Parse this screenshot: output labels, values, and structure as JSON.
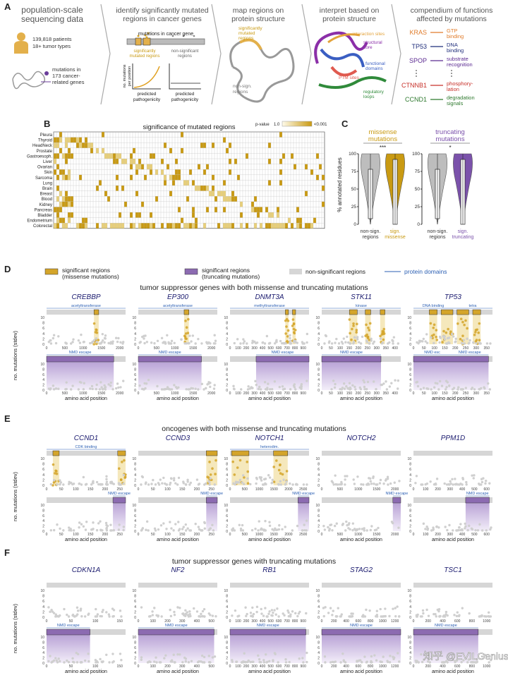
{
  "panel_a": {
    "label": "A",
    "step1": {
      "title": [
        "population-scale",
        "sequencing data"
      ],
      "patients": "139,818 patients",
      "tumor_types": "18+ tumor types",
      "mutations": [
        "mutations in",
        "173 cancer-",
        "related genes"
      ]
    },
    "step2": {
      "title": [
        "identify significantly mutated",
        "regions in cancer genes"
      ],
      "gene_label": "mutations in cancer gene",
      "sig": [
        "significantly",
        "mutated regions"
      ],
      "nonsig": [
        "non-significant",
        "regions"
      ],
      "y_label": [
        "no. mutations",
        "per position"
      ],
      "x_label": [
        "predicted",
        "pathogenicity"
      ]
    },
    "step3": {
      "title": [
        "map regions on",
        "protein structure"
      ],
      "sig": [
        "significantly",
        "mutated",
        "regions"
      ],
      "nonsig": [
        "non-sign.",
        "regions"
      ]
    },
    "step4": {
      "title": [
        "interpret based on",
        "protein structure"
      ],
      "interaction": "interaction sites",
      "core": [
        "structural",
        "core"
      ],
      "domains": [
        "functional",
        "domains"
      ],
      "ptm": "PTM sites",
      "loops": [
        "regulatory",
        "loops"
      ]
    },
    "step5": {
      "title": [
        "compendium of functions",
        "affected by mutations"
      ],
      "rows": [
        {
          "gene": "KRAS",
          "function": [
            "GTP",
            "binding"
          ]
        },
        {
          "gene": "TP53",
          "function": [
            "DNA",
            "binding"
          ]
        },
        {
          "gene": "SPOP",
          "function": [
            "substrate",
            "recognition"
          ]
        },
        {
          "gene": "CTNNB1",
          "function": [
            "phosphory-",
            "lation"
          ]
        },
        {
          "gene": "CCND1",
          "function": [
            "degradation",
            "signals"
          ]
        }
      ]
    }
  },
  "panel_b": {
    "label": "B",
    "title": "significance of mutated regions",
    "legend_title": "p-value",
    "legend_low": "1.0",
    "legend_high": "<0.001",
    "rows": [
      "Pleura",
      "Thyroid",
      "HeadNeck",
      "Prostate",
      "Gastroesoph.",
      "Liver",
      "Ovarian",
      "Skin",
      "Sarcoma",
      "Lung",
      "Brain",
      "Breast",
      "Blood",
      "Kidney",
      "Pancreas",
      "Bladder",
      "Endometrium",
      "Colorectal"
    ]
  },
  "panel_c": {
    "label": "C",
    "y_label": "% annotated residues",
    "y_ticks": [
      0,
      25,
      50,
      75,
      100
    ],
    "missense": {
      "title": [
        "missense",
        "mutations"
      ],
      "stars": "***",
      "x_labels": [
        [
          "non-sign.",
          "regions"
        ],
        [
          "sign.",
          "missense"
        ]
      ]
    },
    "truncating": {
      "title": [
        "truncating",
        "mutations"
      ],
      "stars": "*",
      "x_labels": [
        [
          "non-sign.",
          "regions"
        ],
        [
          "sign.",
          "truncating"
        ]
      ]
    }
  },
  "panel_d": {
    "label": "D",
    "legend": {
      "missense": [
        "significant regions",
        "(missense mutations)"
      ],
      "truncating": [
        "significant regions",
        "(truncating mutations)"
      ],
      "nonsig": "non-significant regions",
      "domains": "protein domains"
    },
    "title": "tumor suppressor genes with both missense and truncating mutations",
    "y_label": "no. mutations (stdev)",
    "y_ticks": [
      0,
      2,
      4,
      6,
      8,
      10
    ],
    "x_label": "amino acid position",
    "genes": [
      {
        "name": "CREBBP",
        "domains": [
          "acetyltransferase"
        ],
        "nmd": [
          "NMD escape"
        ],
        "x_ticks": [
          0,
          500,
          1000,
          1500,
          2000
        ]
      },
      {
        "name": "EP300",
        "domains": [
          "acetyltransferase"
        ],
        "nmd": [
          "NMD escape"
        ],
        "x_ticks": [
          0,
          500,
          1000,
          1500,
          2000
        ]
      },
      {
        "name": "DNMT3A",
        "domains": [
          "methyltransferase"
        ],
        "nmd": [
          "NMD escape"
        ],
        "x_ticks": [
          0,
          100,
          200,
          300,
          400,
          500,
          600,
          700,
          800,
          900
        ]
      },
      {
        "name": "STK11",
        "domains": [
          "kinase"
        ],
        "nmd": [
          "NMD escape"
        ],
        "x_ticks": [
          0,
          50,
          100,
          150,
          200,
          250,
          300,
          350,
          400
        ]
      },
      {
        "name": "TP53",
        "domains": [
          "DNA binding",
          "tetra"
        ],
        "nmd": [
          "NMD esc",
          "NMD escape"
        ],
        "x_ticks": [
          0,
          50,
          100,
          150,
          200,
          250,
          300,
          350
        ]
      }
    ]
  },
  "panel_e": {
    "label": "E",
    "title": "oncogenes with both missense and truncating mutations",
    "y_label": "no. mutations (stdev)",
    "y_ticks": [
      0,
      2,
      4,
      6,
      8,
      10
    ],
    "x_label": "amino acid position",
    "genes": [
      {
        "name": "CCND1",
        "domains": [
          "CDK binding"
        ],
        "nmd": [
          "NMD escape"
        ],
        "x_ticks": [
          0,
          50,
          100,
          150,
          200,
          250
        ]
      },
      {
        "name": "CCND3",
        "domains": [],
        "nmd": [
          "NMD escape"
        ],
        "x_ticks": [
          0,
          50,
          100,
          150,
          200,
          250
        ]
      },
      {
        "name": "NOTCH1",
        "domains": [
          "heterodim."
        ],
        "nmd": [
          "NMD escape"
        ],
        "x_ticks": [
          0,
          500,
          1000,
          1500,
          2000,
          2500
        ]
      },
      {
        "name": "NOTCH2",
        "domains": [],
        "nmd": [
          "NMD escape"
        ],
        "x_ticks": [
          0,
          500,
          1000,
          1500,
          2000
        ]
      },
      {
        "name": "PPM1D",
        "domains": [],
        "nmd": [
          "NMD escape"
        ],
        "x_ticks": [
          0,
          100,
          200,
          300,
          400,
          500,
          600
        ]
      }
    ]
  },
  "panel_f": {
    "label": "F",
    "title": "tumor suppressor genes with truncating mutations",
    "y_label": "no. mutations (stdev)",
    "y_ticks": [
      0,
      2,
      4,
      6,
      8,
      10
    ],
    "x_label": "amino acid position",
    "genes": [
      {
        "name": "CDKN1A",
        "domains": [],
        "nmd": [
          "NMD escape"
        ],
        "x_ticks": [
          0,
          50,
          100,
          150
        ]
      },
      {
        "name": "NF2",
        "domains": [],
        "nmd": [
          "NMD escape"
        ],
        "x_ticks": [
          0,
          100,
          200,
          300,
          400,
          500
        ]
      },
      {
        "name": "RB1",
        "domains": [],
        "nmd": [
          "NMD escape"
        ],
        "x_ticks": [
          0,
          100,
          200,
          300,
          400,
          500,
          600,
          700,
          800,
          900
        ]
      },
      {
        "name": "STAG2",
        "domains": [],
        "nmd": [
          "NMD escape"
        ],
        "x_ticks": [
          0,
          200,
          400,
          600,
          800,
          1000,
          1200
        ]
      },
      {
        "name": "TSC1",
        "domains": [],
        "nmd": [
          "NMD escape"
        ],
        "x_ticks": [
          0,
          200,
          400,
          600,
          800,
          1000
        ]
      }
    ]
  },
  "watermark": "知乎 @EVILGenius"
}
